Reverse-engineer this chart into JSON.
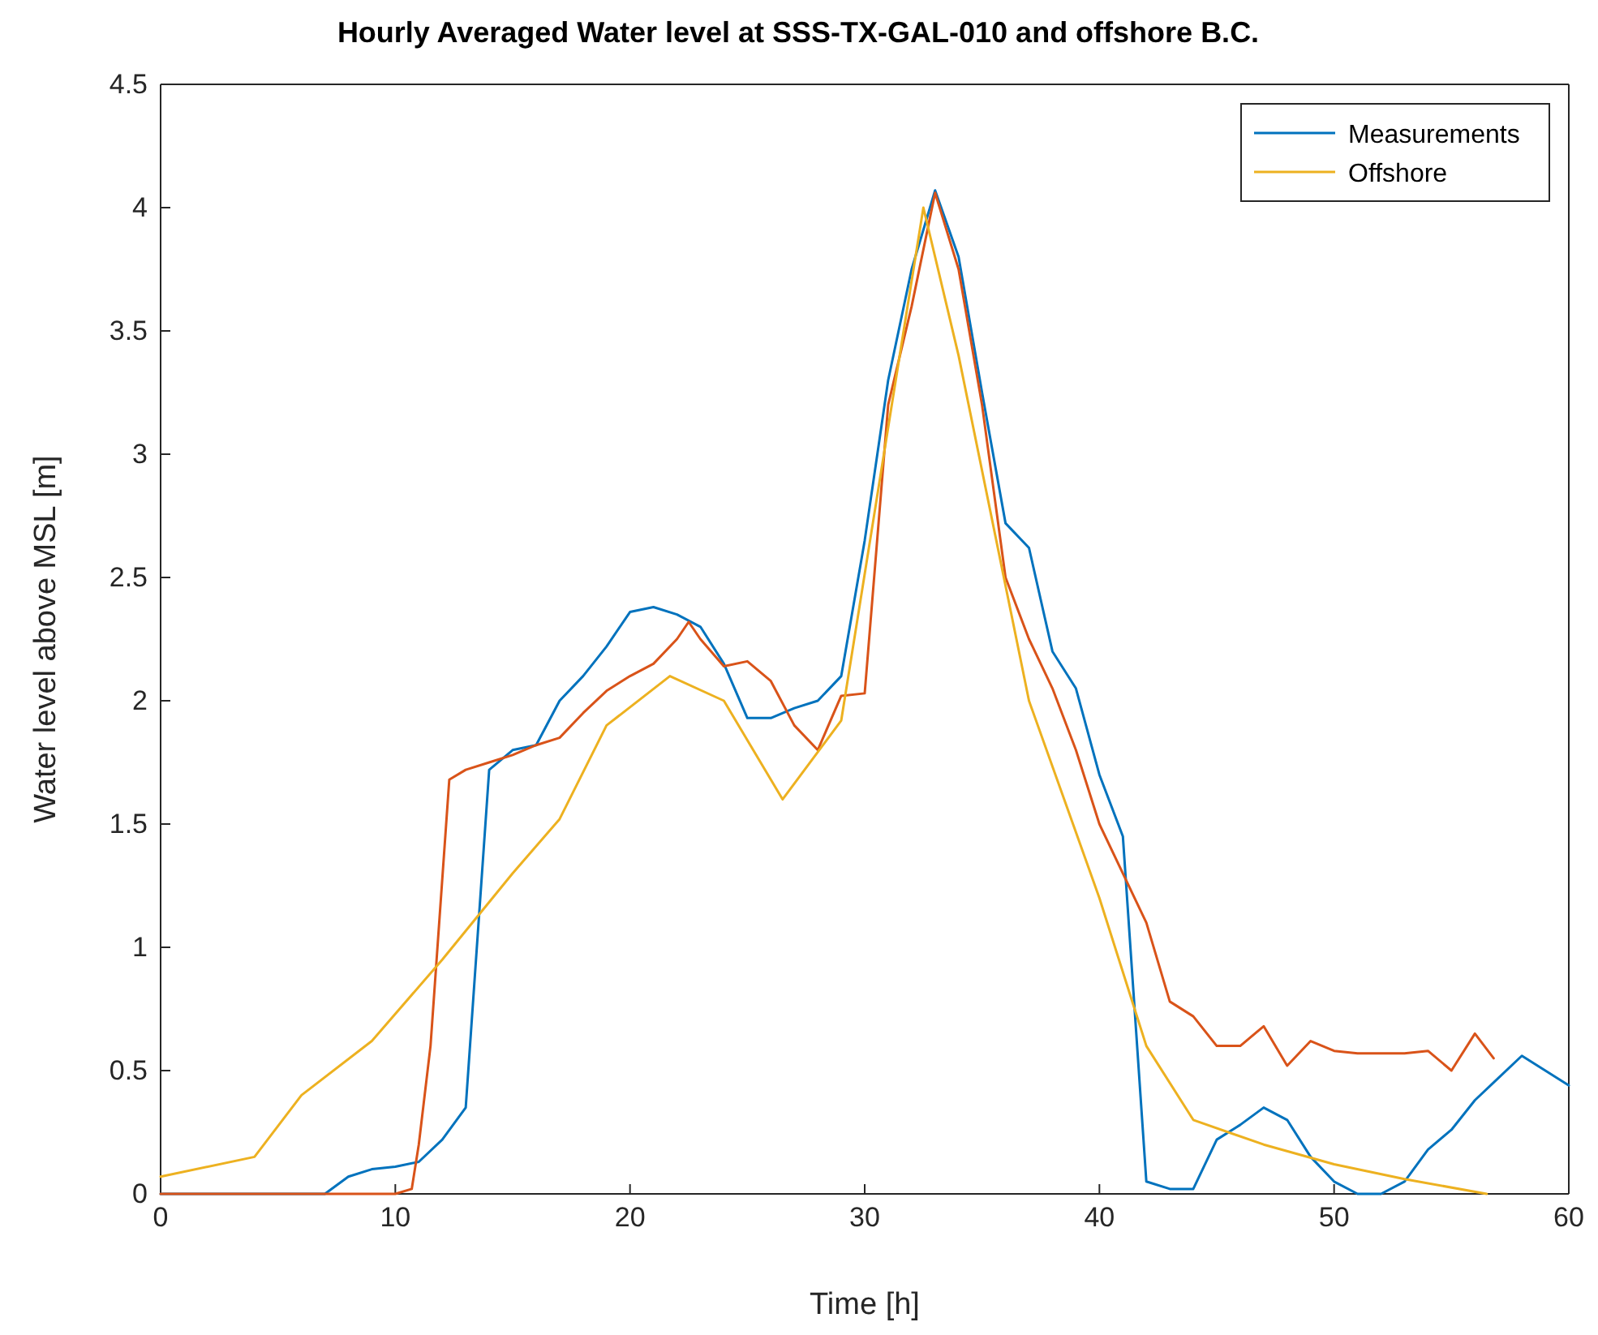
{
  "chart_data": {
    "type": "line",
    "title": "Hourly Averaged Water level at SSS-TX-GAL-010 and offshore B.C.",
    "xlabel": "Time [h]",
    "ylabel": "Water level above MSL [m]",
    "xlim": [
      0,
      60
    ],
    "xticks": [
      0,
      10,
      20,
      30,
      40,
      50,
      60
    ],
    "ylim": [
      0,
      4.5
    ],
    "yticks": [
      0,
      0.5,
      1,
      1.5,
      2,
      2.5,
      3,
      3.5,
      4,
      4.5
    ],
    "legend": "top right",
    "grid": false,
    "series": [
      {
        "name": "Measurements",
        "color": "#0072bd",
        "x": [
          0,
          7,
          8,
          9,
          10,
          11,
          12,
          13,
          14,
          15,
          16,
          17,
          18,
          19,
          20,
          21,
          22,
          23,
          24,
          25,
          26,
          27,
          28,
          29,
          30,
          31,
          32,
          33,
          34,
          35,
          36,
          37,
          38,
          39,
          40,
          41,
          42,
          43,
          44,
          45,
          46,
          47,
          48,
          49,
          50,
          51,
          52,
          53,
          54,
          55,
          56,
          57,
          58,
          59,
          60
        ],
        "values": [
          0,
          0,
          0.07,
          0.1,
          0.11,
          0.13,
          0.22,
          0.35,
          1.72,
          1.8,
          1.82,
          2.0,
          2.1,
          2.22,
          2.36,
          2.38,
          2.35,
          2.3,
          2.15,
          1.93,
          1.93,
          1.97,
          2.0,
          2.1,
          2.65,
          3.3,
          3.75,
          4.07,
          3.8,
          3.25,
          2.72,
          2.62,
          2.2,
          2.05,
          1.7,
          1.45,
          0.05,
          0.02,
          0.02,
          0.22,
          0.28,
          0.35,
          0.3,
          0.15,
          0.05,
          0,
          0,
          0.05,
          0.18,
          0.26,
          0.38,
          0.47,
          0.56,
          0.5,
          0.44
        ]
      },
      {
        "color": "#d95319",
        "x": [
          0,
          10,
          10.7,
          11,
          11.5,
          12.3,
          13,
          14,
          15,
          16,
          17,
          18,
          19,
          20,
          21,
          22,
          22.5,
          23,
          24,
          25,
          26,
          27,
          28,
          29,
          30,
          31,
          32,
          33,
          34,
          35,
          36,
          37,
          38,
          39,
          40,
          41,
          42,
          43,
          44,
          45,
          46,
          47,
          48,
          49,
          50,
          51,
          52,
          53,
          54,
          55,
          56,
          56.8
        ],
        "values": [
          0,
          0,
          0.02,
          0.2,
          0.6,
          1.68,
          1.72,
          1.75,
          1.78,
          1.82,
          1.85,
          1.95,
          2.04,
          2.1,
          2.15,
          2.25,
          2.32,
          2.25,
          2.14,
          2.16,
          2.08,
          1.9,
          1.8,
          2.02,
          2.03,
          3.2,
          3.6,
          4.06,
          3.75,
          3.2,
          2.5,
          2.25,
          2.05,
          1.8,
          1.5,
          1.3,
          1.1,
          0.78,
          0.72,
          0.6,
          0.6,
          0.68,
          0.52,
          0.62,
          0.58,
          0.57,
          0.57,
          0.57,
          0.58,
          0.5,
          0.65,
          0.55
        ]
      },
      {
        "name": "Offshore",
        "color": "#edb120",
        "x": [
          0,
          4,
          6,
          9,
          12,
          15,
          17,
          19,
          21.7,
          24,
          26.5,
          29,
          32.5,
          34,
          37,
          40,
          42,
          44,
          47,
          50,
          53,
          56.5
        ],
        "values": [
          0.07,
          0.15,
          0.4,
          0.62,
          0.95,
          1.3,
          1.52,
          1.9,
          2.1,
          2.0,
          1.6,
          1.92,
          4.0,
          3.4,
          2.0,
          1.2,
          0.6,
          0.3,
          0.2,
          0.12,
          0.06,
          0
        ]
      }
    ]
  }
}
